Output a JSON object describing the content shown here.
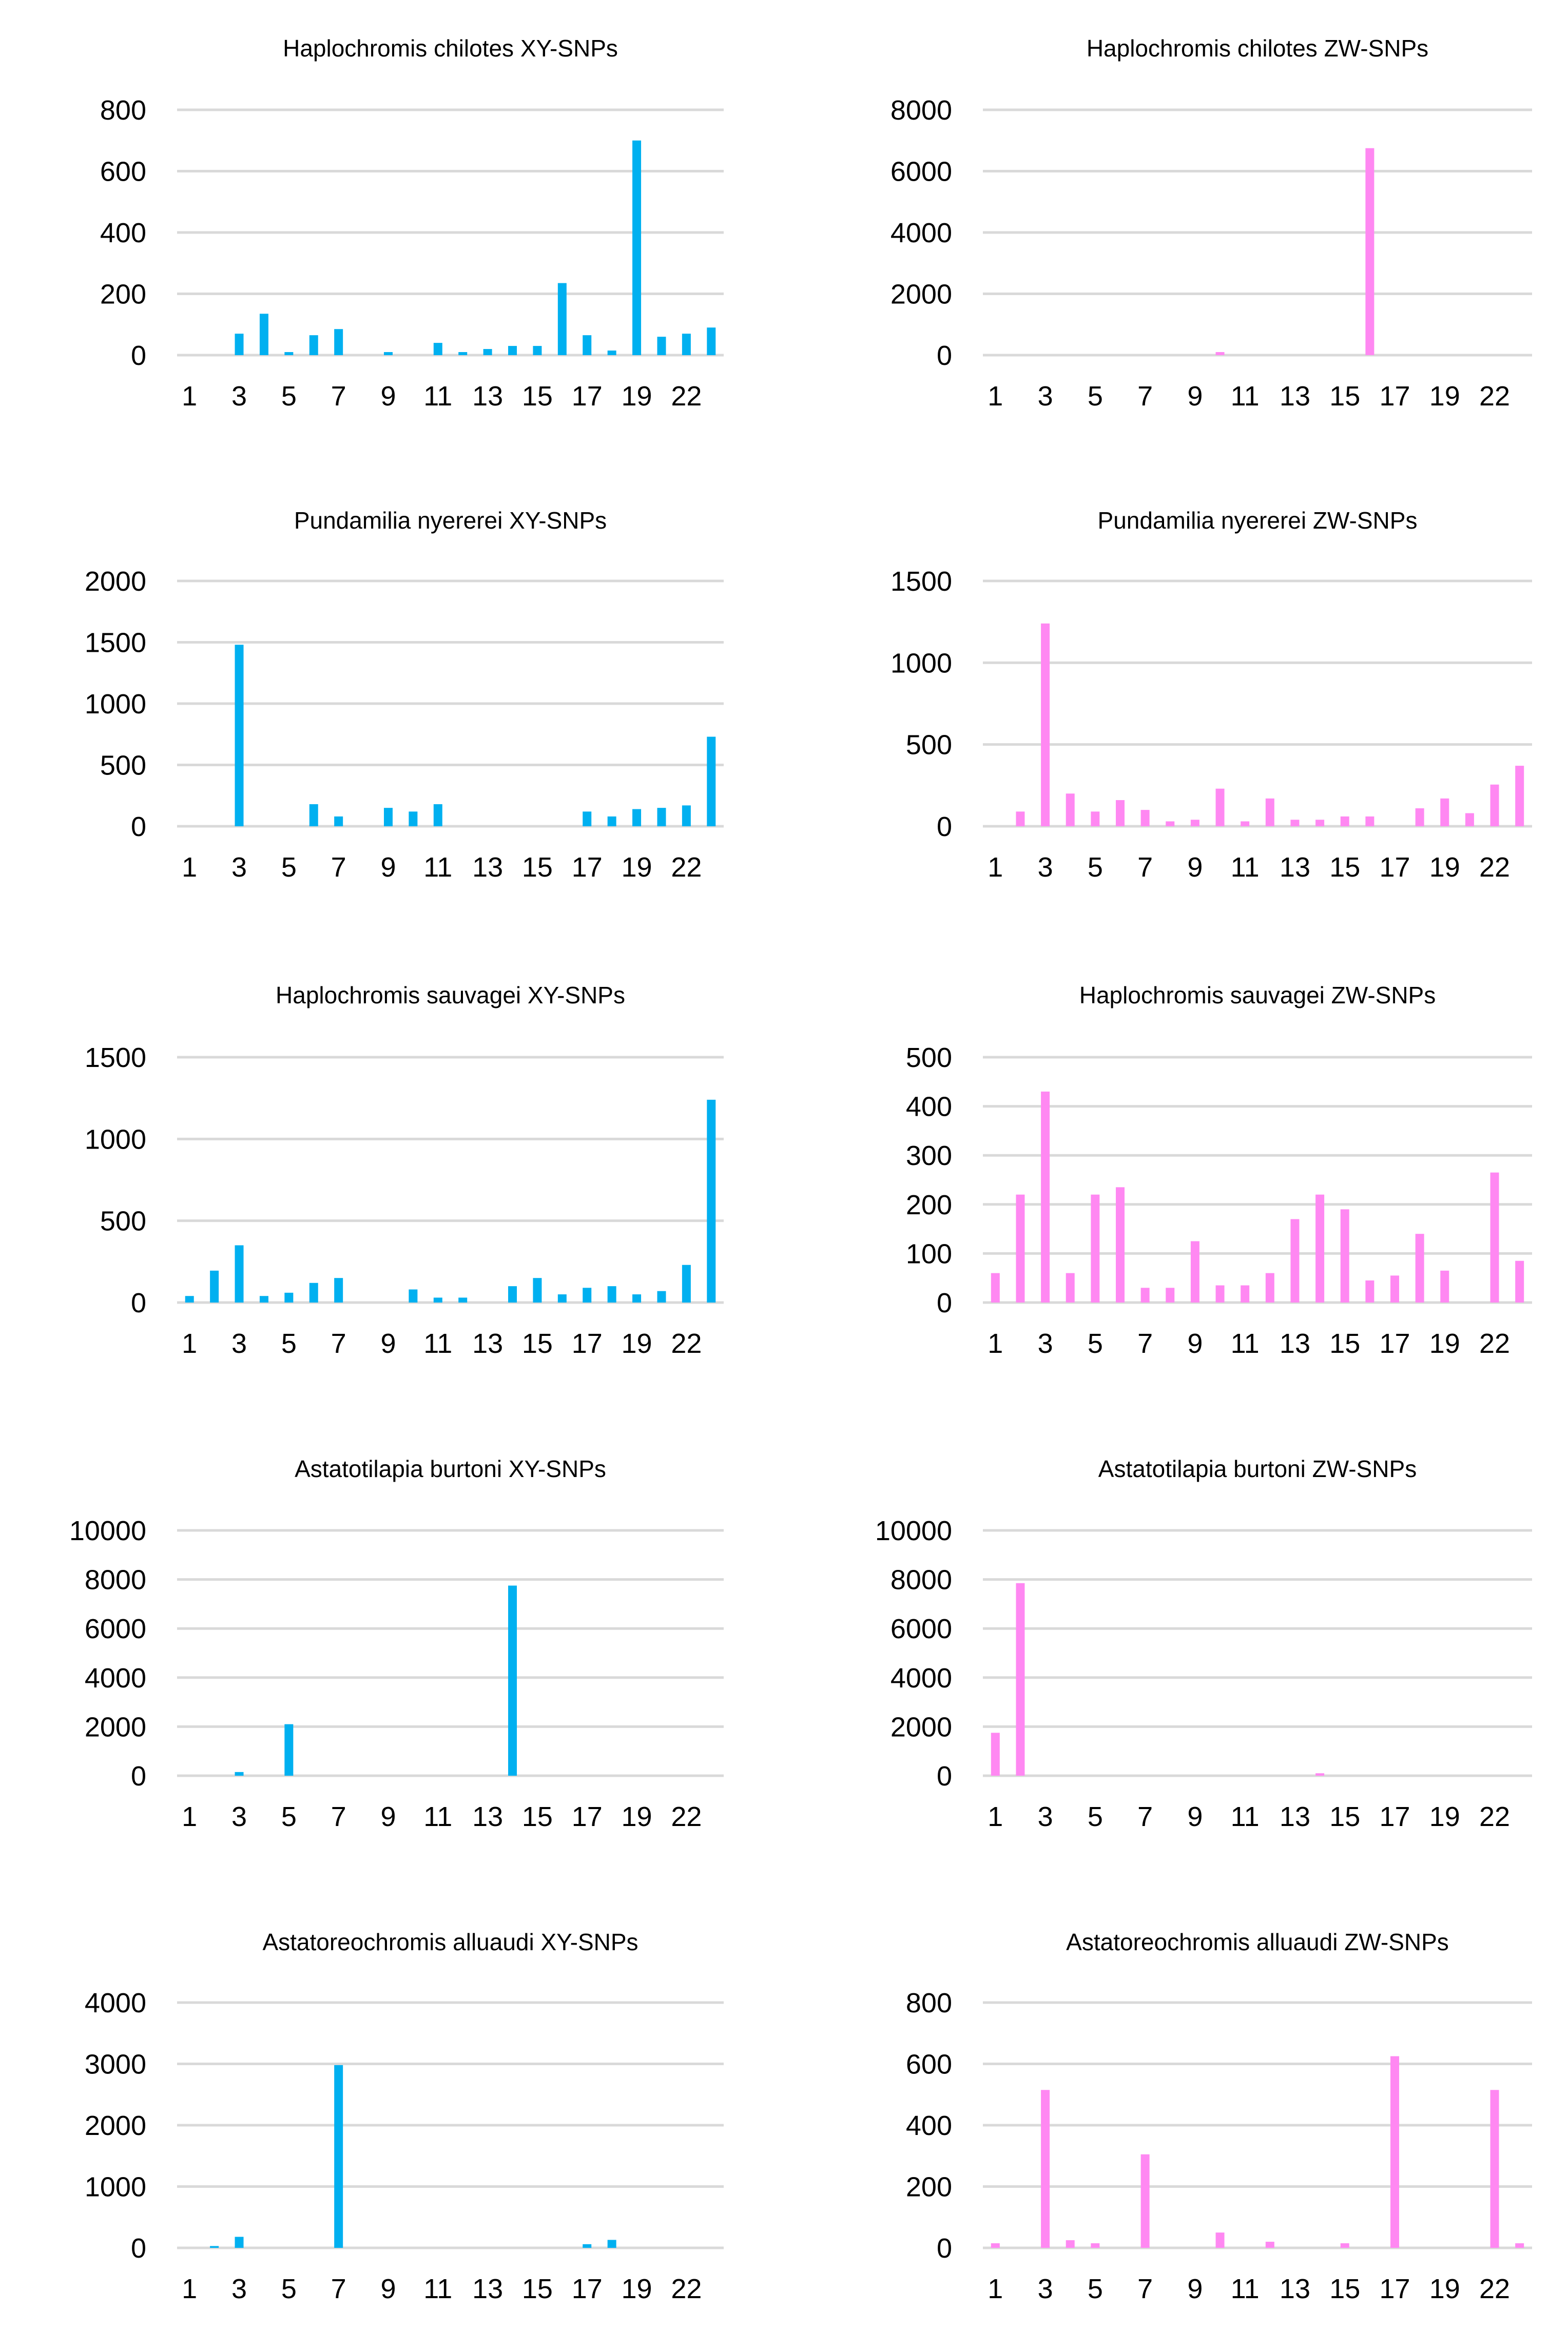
{
  "colors": {
    "xy": "#00B0F0",
    "zw": "#FF88F2",
    "grid": "#D9D9D9"
  },
  "chart_data": [
    {
      "type": "bar",
      "title": "Haplochromis chilotes XY-SNPs",
      "series": "xy",
      "ylim": [
        0,
        800
      ],
      "yticks": [
        "0",
        "200",
        "400",
        "600",
        "800"
      ],
      "xticks": [
        "1",
        "3",
        "5",
        "7",
        "9",
        "11",
        "13",
        "15",
        "17",
        "19",
        "22"
      ],
      "categories": [
        "1",
        "2",
        "3",
        "4",
        "5",
        "6",
        "7",
        "8",
        "9",
        "10",
        "11",
        "12",
        "13",
        "14",
        "15",
        "16",
        "17",
        "18",
        "19",
        "20",
        "22",
        "23"
      ],
      "values": [
        0,
        0,
        70,
        135,
        10,
        65,
        85,
        0,
        10,
        0,
        40,
        10,
        20,
        30,
        30,
        235,
        65,
        15,
        700,
        60,
        70,
        90
      ]
    },
    {
      "type": "bar",
      "title": "Haplochromis chilotes ZW-SNPs",
      "series": "zw",
      "ylim": [
        0,
        8000
      ],
      "yticks": [
        "0",
        "2000",
        "4000",
        "6000",
        "8000"
      ],
      "xticks": [
        "1",
        "3",
        "5",
        "7",
        "9",
        "11",
        "13",
        "15",
        "17",
        "19",
        "22"
      ],
      "categories": [
        "1",
        "2",
        "3",
        "4",
        "5",
        "6",
        "7",
        "8",
        "9",
        "10",
        "11",
        "12",
        "13",
        "14",
        "15",
        "16",
        "17",
        "18",
        "19",
        "20",
        "22",
        "23"
      ],
      "values": [
        0,
        0,
        0,
        0,
        0,
        0,
        0,
        0,
        0,
        100,
        0,
        0,
        0,
        0,
        0,
        6750,
        0,
        0,
        0,
        0,
        0,
        0
      ]
    },
    {
      "type": "bar",
      "title": "Pundamilia nyererei XY-SNPs",
      "series": "xy",
      "ylim": [
        0,
        2000
      ],
      "yticks": [
        "0",
        "500",
        "1000",
        "1500",
        "2000"
      ],
      "xticks": [
        "1",
        "3",
        "5",
        "7",
        "9",
        "11",
        "13",
        "15",
        "17",
        "19",
        "22"
      ],
      "categories": [
        "1",
        "2",
        "3",
        "4",
        "5",
        "6",
        "7",
        "8",
        "9",
        "10",
        "11",
        "12",
        "13",
        "14",
        "15",
        "16",
        "17",
        "18",
        "19",
        "20",
        "22",
        "23"
      ],
      "values": [
        0,
        0,
        1480,
        0,
        0,
        180,
        80,
        0,
        150,
        120,
        180,
        0,
        0,
        0,
        0,
        0,
        120,
        80,
        140,
        150,
        170,
        730
      ]
    },
    {
      "type": "bar",
      "title": "Pundamilia nyererei ZW-SNPs",
      "series": "zw",
      "ylim": [
        0,
        1500
      ],
      "yticks": [
        "0",
        "500",
        "1000",
        "1500"
      ],
      "xticks": [
        "1",
        "3",
        "5",
        "7",
        "9",
        "11",
        "13",
        "15",
        "17",
        "19",
        "22"
      ],
      "categories": [
        "1",
        "2",
        "3",
        "4",
        "5",
        "6",
        "7",
        "8",
        "9",
        "10",
        "11",
        "12",
        "13",
        "14",
        "15",
        "16",
        "17",
        "18",
        "19",
        "20",
        "22",
        "23"
      ],
      "values": [
        0,
        90,
        1240,
        200,
        90,
        160,
        100,
        30,
        40,
        230,
        30,
        170,
        40,
        40,
        60,
        60,
        0,
        110,
        170,
        80,
        255,
        370
      ]
    },
    {
      "type": "bar",
      "title": "Haplochromis sauvagei XY-SNPs",
      "series": "xy",
      "ylim": [
        0,
        1500
      ],
      "yticks": [
        "0",
        "500",
        "1000",
        "1500"
      ],
      "xticks": [
        "1",
        "3",
        "5",
        "7",
        "9",
        "11",
        "13",
        "15",
        "17",
        "19",
        "22"
      ],
      "categories": [
        "1",
        "2",
        "3",
        "4",
        "5",
        "6",
        "7",
        "8",
        "9",
        "10",
        "11",
        "12",
        "13",
        "14",
        "15",
        "16",
        "17",
        "18",
        "19",
        "20",
        "22",
        "23"
      ],
      "values": [
        40,
        195,
        350,
        40,
        60,
        120,
        150,
        0,
        0,
        80,
        30,
        30,
        0,
        100,
        150,
        50,
        90,
        100,
        50,
        70,
        230,
        1240
      ]
    },
    {
      "type": "bar",
      "title": "Haplochromis sauvagei ZW-SNPs",
      "series": "zw",
      "ylim": [
        0,
        500
      ],
      "yticks": [
        "0",
        "100",
        "200",
        "300",
        "400",
        "500"
      ],
      "xticks": [
        "1",
        "3",
        "5",
        "7",
        "9",
        "11",
        "13",
        "15",
        "17",
        "19",
        "22"
      ],
      "categories": [
        "1",
        "2",
        "3",
        "4",
        "5",
        "6",
        "7",
        "8",
        "9",
        "10",
        "11",
        "12",
        "13",
        "14",
        "15",
        "16",
        "17",
        "18",
        "19",
        "20",
        "22",
        "23"
      ],
      "values": [
        60,
        220,
        430,
        60,
        220,
        235,
        30,
        30,
        125,
        35,
        35,
        60,
        170,
        220,
        190,
        45,
        55,
        140,
        65,
        0,
        265,
        85
      ]
    },
    {
      "type": "bar",
      "title": "Astatotilapia burtoni XY-SNPs",
      "series": "xy",
      "ylim": [
        0,
        10000
      ],
      "yticks": [
        "0",
        "2000",
        "4000",
        "6000",
        "8000",
        "10000"
      ],
      "xticks": [
        "1",
        "3",
        "5",
        "7",
        "9",
        "11",
        "13",
        "15",
        "17",
        "19",
        "22"
      ],
      "categories": [
        "1",
        "2",
        "3",
        "4",
        "5",
        "6",
        "7",
        "8",
        "9",
        "10",
        "11",
        "12",
        "13",
        "14",
        "15",
        "16",
        "17",
        "18",
        "19",
        "20",
        "22",
        "23"
      ],
      "values": [
        0,
        0,
        150,
        0,
        2100,
        0,
        0,
        0,
        0,
        0,
        0,
        0,
        0,
        7750,
        0,
        0,
        0,
        0,
        0,
        0,
        0,
        0
      ]
    },
    {
      "type": "bar",
      "title": "Astatotilapia burtoni ZW-SNPs",
      "series": "zw",
      "ylim": [
        0,
        10000
      ],
      "yticks": [
        "0",
        "2000",
        "4000",
        "6000",
        "8000",
        "10000"
      ],
      "xticks": [
        "1",
        "3",
        "5",
        "7",
        "9",
        "11",
        "13",
        "15",
        "17",
        "19",
        "22"
      ],
      "categories": [
        "1",
        "2",
        "3",
        "4",
        "5",
        "6",
        "7",
        "8",
        "9",
        "10",
        "11",
        "12",
        "13",
        "14",
        "15",
        "16",
        "17",
        "18",
        "19",
        "20",
        "22",
        "23"
      ],
      "values": [
        1750,
        7850,
        0,
        0,
        0,
        0,
        0,
        0,
        0,
        0,
        0,
        0,
        0,
        100,
        0,
        0,
        0,
        0,
        0,
        0,
        0,
        0
      ]
    },
    {
      "type": "bar",
      "title": "Astatoreochromis alluaudi XY-SNPs",
      "series": "xy",
      "ylim": [
        0,
        4000
      ],
      "yticks": [
        "0",
        "1000",
        "2000",
        "3000",
        "4000"
      ],
      "xticks": [
        "1",
        "3",
        "5",
        "7",
        "9",
        "11",
        "13",
        "15",
        "17",
        "19",
        "22"
      ],
      "categories": [
        "1",
        "2",
        "3",
        "4",
        "5",
        "6",
        "7",
        "8",
        "9",
        "10",
        "11",
        "12",
        "13",
        "14",
        "15",
        "16",
        "17",
        "18",
        "19",
        "20",
        "22",
        "23"
      ],
      "values": [
        0,
        30,
        180,
        0,
        0,
        0,
        2980,
        0,
        0,
        0,
        0,
        0,
        0,
        0,
        0,
        0,
        60,
        130,
        0,
        0,
        0,
        0
      ]
    },
    {
      "type": "bar",
      "title": "Astatoreochromis alluaudi ZW-SNPs",
      "series": "zw",
      "ylim": [
        0,
        800
      ],
      "yticks": [
        "0",
        "200",
        "400",
        "600",
        "800"
      ],
      "xticks": [
        "1",
        "3",
        "5",
        "7",
        "9",
        "11",
        "13",
        "15",
        "17",
        "19",
        "22"
      ],
      "categories": [
        "1",
        "2",
        "3",
        "4",
        "5",
        "6",
        "7",
        "8",
        "9",
        "10",
        "11",
        "12",
        "13",
        "14",
        "15",
        "16",
        "17",
        "18",
        "19",
        "20",
        "22",
        "23"
      ],
      "values": [
        15,
        0,
        515,
        25,
        15,
        0,
        305,
        0,
        0,
        50,
        0,
        20,
        0,
        0,
        15,
        0,
        625,
        0,
        0,
        0,
        515,
        15
      ]
    }
  ]
}
